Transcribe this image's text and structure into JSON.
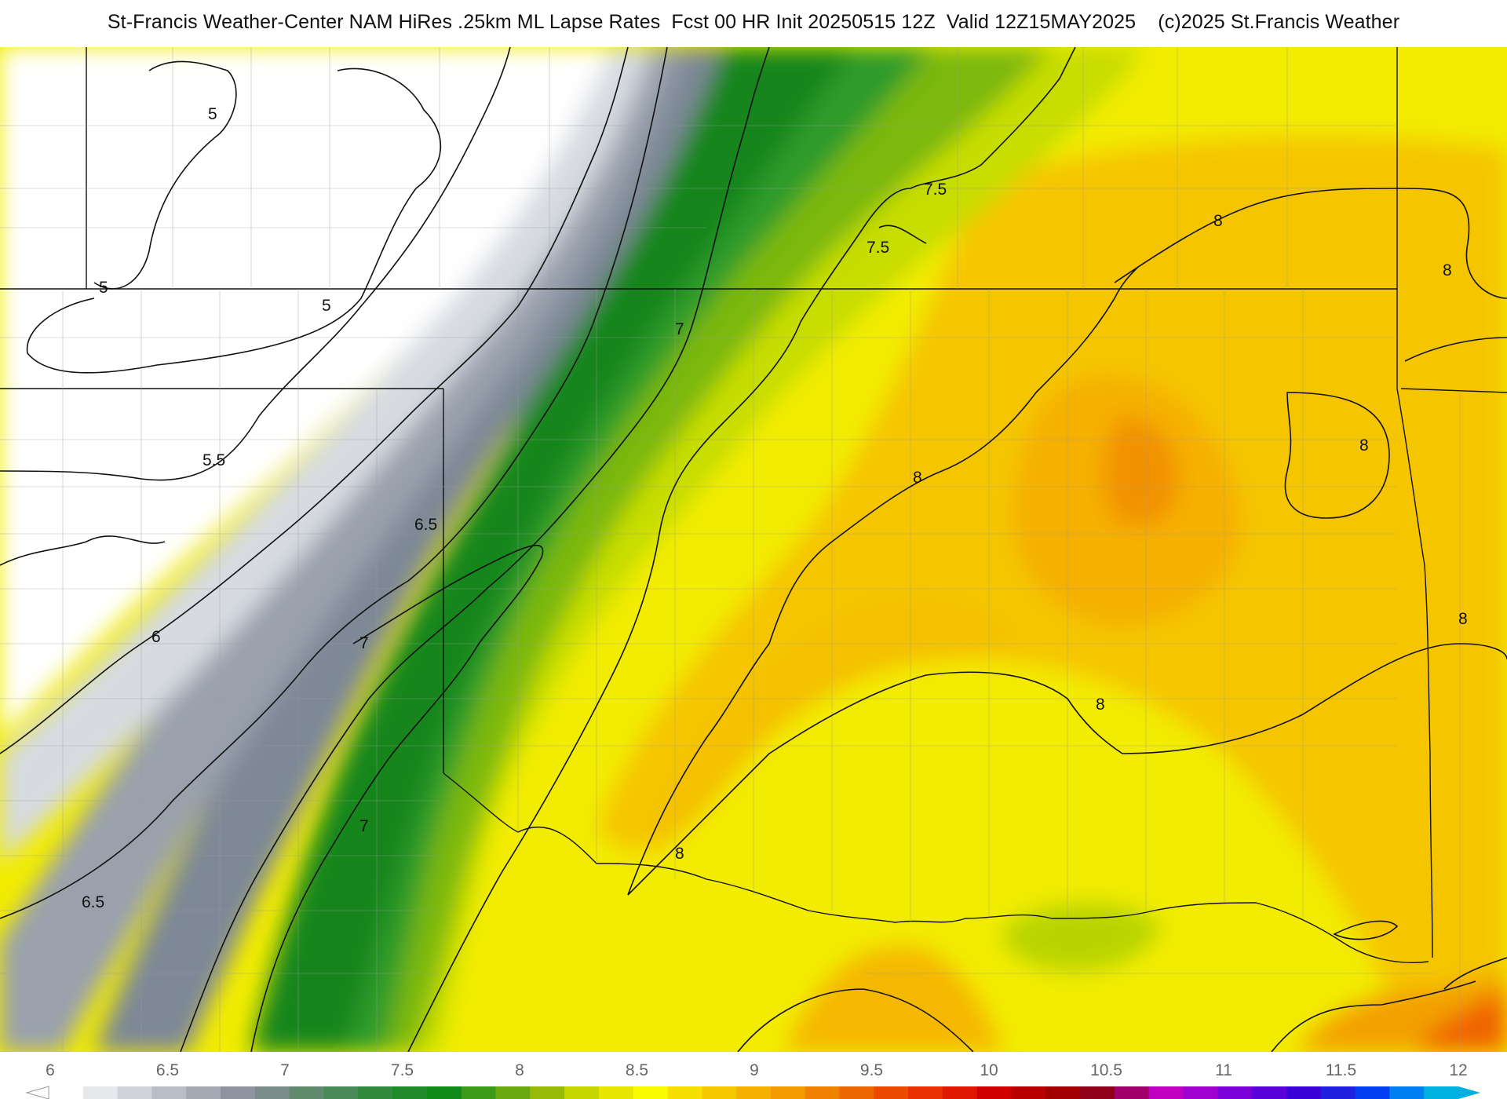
{
  "title": "St-Francis Weather-Center NAM HiRes .25km ML Lapse Rates  Fcst 00 HR Init 20250515 12Z  Valid 12Z15MAY2025    (c)2025 St.Francis Weather",
  "contour_labels": {
    "c1": "5",
    "c2": "5",
    "c3": "5",
    "c4": "5.5",
    "c5": "6",
    "c6": "6.5",
    "c7": "6.5",
    "c8": "7",
    "c9": "7",
    "c10": "7",
    "c11": "7.5",
    "c12": "7.5",
    "c13": "8",
    "c14": "8",
    "c15": "8",
    "c16": "8",
    "c17": "8",
    "c18": "8",
    "c19": "8"
  },
  "colorbar": {
    "ticks": [
      "6",
      "6.5",
      "7",
      "7.5",
      "8",
      "8.5",
      "9",
      "9.5",
      "10",
      "10.5",
      "11",
      "11.5",
      "12"
    ],
    "colors": [
      "#ffffff",
      "#e6e8ec",
      "#d0d4da",
      "#b9bec6",
      "#a3a9b3",
      "#8d94a0",
      "#7b8c88",
      "#5f8a6c",
      "#4a8a58",
      "#2f8a3c",
      "#1f8a2a",
      "#108a18",
      "#3c9a18",
      "#6aaa10",
      "#96bc08",
      "#c6d600",
      "#e6e600",
      "#fafa00",
      "#f5e000",
      "#f5c800",
      "#f5b000",
      "#f39a00",
      "#f08000",
      "#ee6600",
      "#ec4a00",
      "#e83000",
      "#e01800",
      "#d00000",
      "#b80000",
      "#a00000",
      "#900018",
      "#a0006a",
      "#c000c0",
      "#a000d0",
      "#7a00d8",
      "#5a00d8",
      "#3a00d8",
      "#2020e0",
      "#0040f0",
      "#0080f0",
      "#00b0e0"
    ]
  },
  "map_colors": {
    "white": "#ffffff",
    "gray_light": "#d7dbe1",
    "gray_mid": "#9aa1ad",
    "gray_dark": "#7e8897",
    "green_dark": "#16861e",
    "green_mid": "#2f9b2a",
    "green_light": "#7cb80c",
    "yellow_green": "#c7dd00",
    "yellow": "#f2ec00",
    "yellow_orange": "#f5cd00",
    "orange": "#f5b300",
    "orange_dark": "#f29200",
    "orange_red": "#f06400"
  }
}
